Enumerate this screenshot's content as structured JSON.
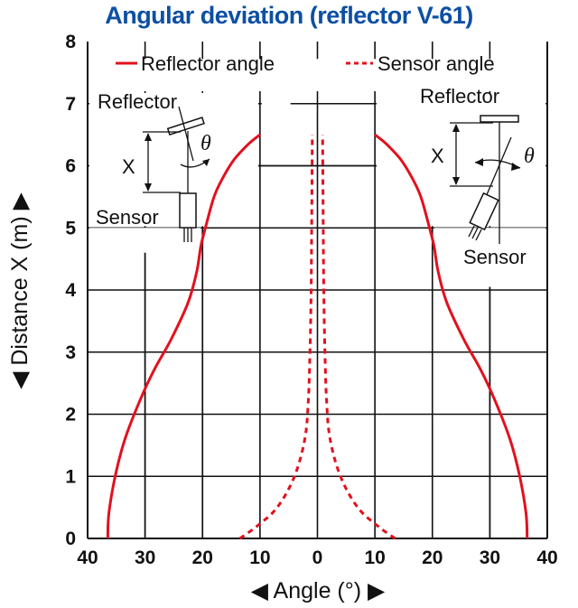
{
  "chart_data": {
    "type": "line",
    "title": "Angular deviation (reflector V-61)",
    "xlabel": "◀ Angle (°) ▶",
    "ylabel": "◀ Distance X (m) ▶",
    "xlim": [
      -40,
      40
    ],
    "ylim": [
      0,
      8
    ],
    "x_ticks": [
      -40,
      -30,
      -20,
      -10,
      0,
      10,
      20,
      30,
      40
    ],
    "x_tick_labels": [
      "40",
      "30",
      "20",
      "10",
      "0",
      "10",
      "20",
      "30",
      "40"
    ],
    "y_ticks": [
      0,
      1,
      2,
      3,
      4,
      5,
      6,
      7,
      8
    ],
    "y_tick_labels": [
      "0",
      "1",
      "2",
      "3",
      "4",
      "5",
      "6",
      "7",
      "8"
    ],
    "grid": true,
    "legend_position": "top",
    "series": [
      {
        "name": "Reflector angle",
        "style": "solid",
        "color": "#e3101e",
        "branches": [
          {
            "x": [
              -36.5,
              -36.3,
              -35.2,
              -33.5,
              -31,
              -28.5,
              -25.5,
              -22.5,
              -21,
              -20.3,
              -19.5,
              -18,
              -16.5,
              -14.5,
              -12,
              -10
            ],
            "y": [
              0,
              0.4,
              1,
              1.6,
              2.2,
              2.7,
              3.2,
              3.8,
              4.3,
              4.7,
              5.0,
              5.5,
              5.8,
              6.1,
              6.35,
              6.5
            ]
          },
          {
            "x": [
              36.5,
              36.3,
              35.2,
              33.5,
              31,
              28.5,
              25.5,
              22.5,
              21,
              20.3,
              19.5,
              18,
              16.5,
              14.5,
              12,
              10
            ],
            "y": [
              0,
              0.4,
              1,
              1.6,
              2.2,
              2.7,
              3.2,
              3.8,
              4.3,
              4.7,
              5.0,
              5.5,
              5.8,
              6.1,
              6.35,
              6.5
            ]
          }
        ]
      },
      {
        "name": "Sensor angle",
        "style": "dashed",
        "color": "#e3101e",
        "branches": [
          {
            "x": [
              -13.5,
              -10.5,
              -7,
              -4,
              -2.2,
              -1.6,
              -1.3,
              -1.1,
              -1.0,
              -0.9
            ],
            "y": [
              0,
              0.2,
              0.5,
              1.0,
              1.6,
              2.2,
              3,
              4,
              5,
              6.5
            ]
          },
          {
            "x": [
              13.5,
              10.5,
              7,
              4,
              2.2,
              1.6,
              1.3,
              1.1,
              1.0,
              0.9
            ],
            "y": [
              0,
              0.2,
              0.5,
              1.0,
              1.6,
              2.2,
              3,
              4,
              5,
              6.5
            ]
          }
        ]
      }
    ]
  },
  "legend": {
    "reflector_label": "Reflector angle",
    "sensor_label": "Sensor angle"
  },
  "diagrams": {
    "left": {
      "reflector": "Reflector",
      "sensor": "Sensor",
      "distance": "X",
      "angle": "θ"
    },
    "right": {
      "reflector": "Reflector",
      "sensor": "Sensor",
      "distance": "X",
      "angle": "θ"
    }
  }
}
